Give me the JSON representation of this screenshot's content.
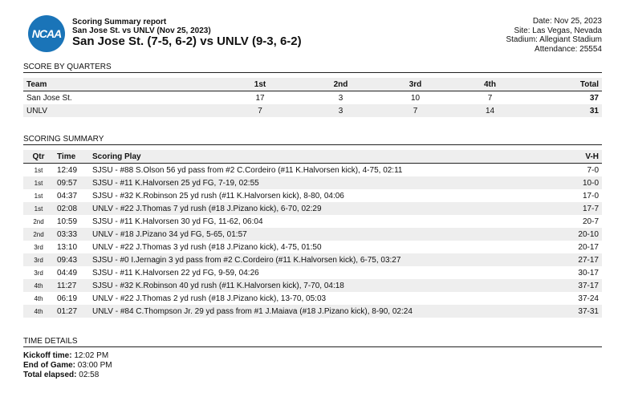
{
  "header": {
    "logo_text": "NCAA",
    "report_title": "Scoring Summary report",
    "subtitle": "San Jose St. vs UNLV (Nov 25, 2023)",
    "matchup": "San Jose St. (7-5, 6-2) vs UNLV (9-3, 6-2)",
    "date": "Date: Nov 25, 2023",
    "site": "Site: Las Vegas, Nevada",
    "stadium": "Stadium: Allegiant Stadium",
    "attendance": "Attendance: 25554"
  },
  "score_by_quarters": {
    "title": "SCORE BY QUARTERS",
    "columns": [
      "Team",
      "1st",
      "2nd",
      "3rd",
      "4th",
      "Total"
    ],
    "rows": [
      [
        "San Jose St.",
        "17",
        "3",
        "10",
        "7",
        "37"
      ],
      [
        "UNLV",
        "7",
        "3",
        "7",
        "14",
        "31"
      ]
    ]
  },
  "scoring_summary": {
    "title": "SCORING SUMMARY",
    "columns": [
      "Qtr",
      "Time",
      "Scoring Play",
      "V-H"
    ],
    "rows": [
      [
        "1st",
        "12:49",
        "SJSU - #88 S.Olson 56 yd pass from #2 C.Cordeiro (#11 K.Halvorsen kick), 4-75, 02:11",
        "7-0"
      ],
      [
        "1st",
        "09:57",
        "SJSU - #11 K.Halvorsen 25 yd FG, 7-19, 02:55",
        "10-0"
      ],
      [
        "1st",
        "04:37",
        "SJSU - #32 K.Robinson 25 yd rush (#11 K.Halvorsen kick), 8-80, 04:06",
        "17-0"
      ],
      [
        "1st",
        "02:08",
        "UNLV - #22 J.Thomas 7 yd rush (#18 J.Pizano kick), 6-70, 02:29",
        "17-7"
      ],
      [
        "2nd",
        "10:59",
        "SJSU - #11 K.Halvorsen 30 yd FG, 11-62, 06:04",
        "20-7"
      ],
      [
        "2nd",
        "03:33",
        "UNLV - #18 J.Pizano 34 yd FG, 5-65, 01:57",
        "20-10"
      ],
      [
        "3rd",
        "13:10",
        "UNLV - #22 J.Thomas 3 yd rush (#18 J.Pizano kick), 4-75, 01:50",
        "20-17"
      ],
      [
        "3rd",
        "09:43",
        "SJSU - #0 I.Jernagin 3 yd pass from #2 C.Cordeiro (#11 K.Halvorsen kick), 6-75, 03:27",
        "27-17"
      ],
      [
        "3rd",
        "04:49",
        "SJSU - #11 K.Halvorsen 22 yd FG, 9-59, 04:26",
        "30-17"
      ],
      [
        "4th",
        "11:27",
        "SJSU - #32 K.Robinson 40 yd rush (#11 K.Halvorsen kick), 7-70, 04:18",
        "37-17"
      ],
      [
        "4th",
        "06:19",
        "UNLV - #22 J.Thomas 2 yd rush (#18 J.Pizano kick), 13-70, 05:03",
        "37-24"
      ],
      [
        "4th",
        "01:27",
        "UNLV - #84 C.Thompson Jr. 29 yd pass from #1 J.Maiava (#18 J.Pizano kick), 8-90, 02:24",
        "37-31"
      ]
    ]
  },
  "time_details": {
    "title": "TIME DETAILS",
    "kickoff_label": "Kickoff time:",
    "kickoff": "12:02 PM",
    "end_label": "End of Game:",
    "end": "03:00 PM",
    "elapsed_label": "Total elapsed:",
    "elapsed": "02:58"
  }
}
